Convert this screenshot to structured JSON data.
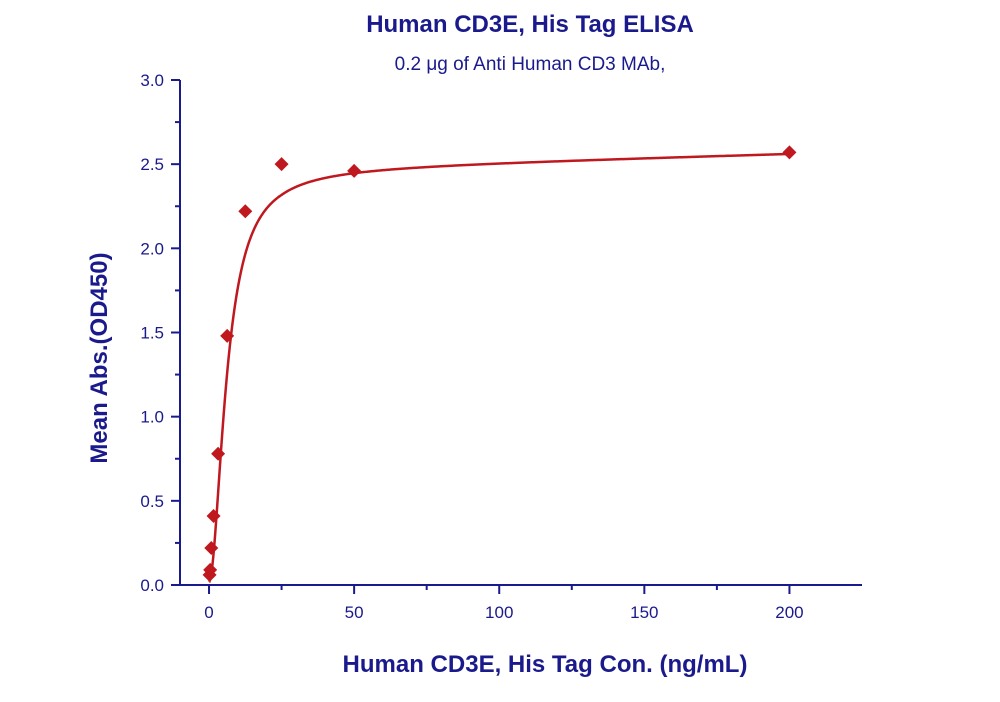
{
  "chart_data": {
    "type": "scatter",
    "title": "Human CD3E, His Tag ELISA",
    "subtitle": "0.2 μg of Anti Human CD3 MAb,",
    "xlabel": "Human CD3E, His Tag Con. (ng/mL)",
    "ylabel": "Mean Abs.(OD450)",
    "xlim": [
      -10,
      225
    ],
    "ylim": [
      0.0,
      3.0
    ],
    "xticks": [
      "0",
      "50",
      "100",
      "150",
      "200"
    ],
    "yticks": [
      "0.0",
      "0.5",
      "1.0",
      "1.5",
      "2.0",
      "2.5",
      "3.0"
    ],
    "grid": false,
    "legend": "none",
    "series": [
      {
        "marker": "diamond",
        "fit": "smooth curve",
        "x": [
          0.195,
          0.39,
          0.78,
          1.56,
          3.125,
          6.25,
          12.5,
          25,
          50,
          200
        ],
        "y": [
          0.06,
          0.09,
          0.22,
          0.41,
          0.78,
          1.48,
          2.22,
          2.5,
          2.46,
          2.57
        ]
      }
    ],
    "colors": {
      "text": "#1a1a8c",
      "axis": "#1a1a8c",
      "series": "#c0181f"
    }
  }
}
